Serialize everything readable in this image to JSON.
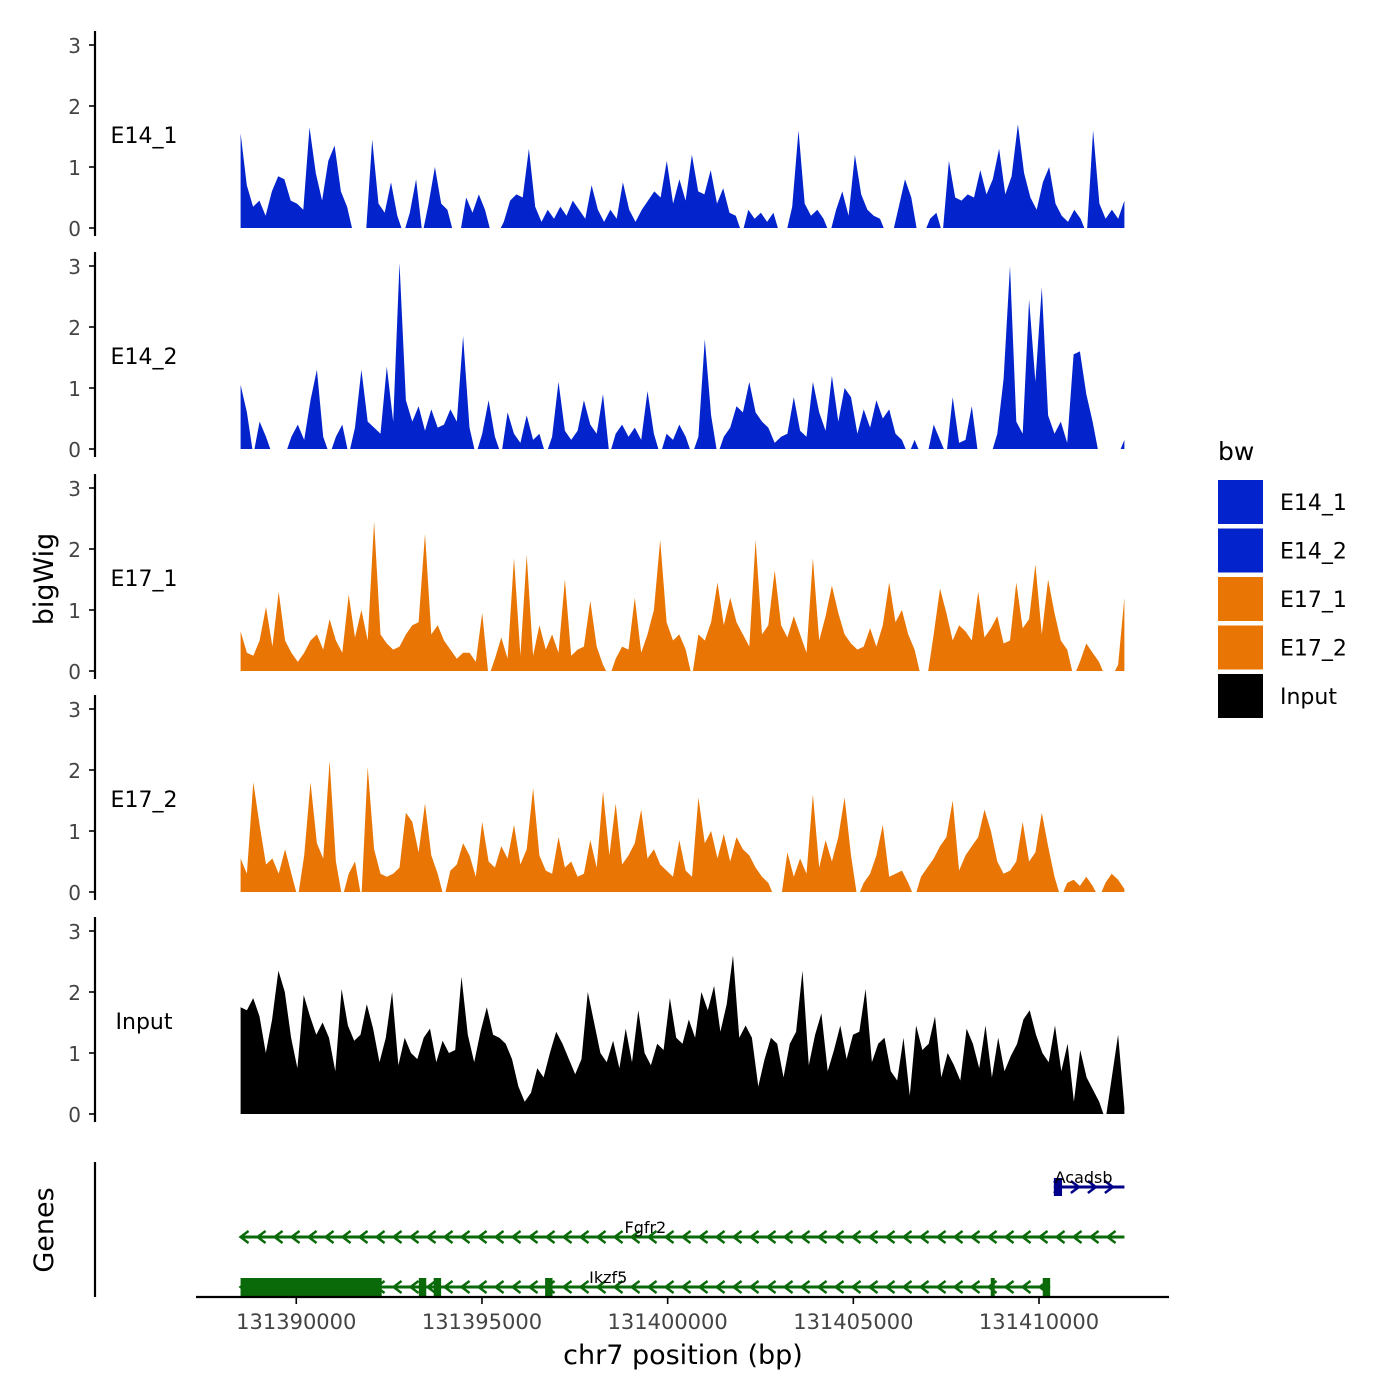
{
  "chart_data": {
    "type": "area",
    "title": "",
    "xlabel": "chr7 position (bp)",
    "ylabel": "bigWig",
    "genes_label": "Genes",
    "xlim": [
      131387300,
      131413500
    ],
    "ylim": [
      0,
      3.2
    ],
    "y_ticks": [
      "0",
      "1",
      "2",
      "3"
    ],
    "x_ticks": [
      {
        "value": 131390000,
        "label": "131390000"
      },
      {
        "value": 131395000,
        "label": "131395000"
      },
      {
        "value": 131400000,
        "label": "131400000"
      },
      {
        "value": 131405000,
        "label": "131405000"
      },
      {
        "value": 131410000,
        "label": "131410000"
      }
    ],
    "data_range": [
      131388500,
      131412300
    ],
    "legend": {
      "title": "bw",
      "items": [
        {
          "label": "E14_1",
          "color": "#0324CC"
        },
        {
          "label": "E14_2",
          "color": "#0324CC"
        },
        {
          "label": "E17_1",
          "color": "#E87504"
        },
        {
          "label": "E17_2",
          "color": "#E87504"
        },
        {
          "label": "Input",
          "color": "#000000"
        }
      ]
    },
    "series": [
      {
        "name": "E14_1",
        "color": "#0324CC",
        "values": [
          1.55,
          0.7,
          0.35,
          0.45,
          0.2,
          0.6,
          0.85,
          0.8,
          0.45,
          0.4,
          0.3,
          1.65,
          0.9,
          0.45,
          1.1,
          1.35,
          0.6,
          0.35,
          -0.1,
          -0.1,
          -0.1,
          1.45,
          0.4,
          0.25,
          0.75,
          0.2,
          -0.1,
          0.25,
          0.8,
          -0.1,
          0.4,
          1.0,
          0.4,
          0.3,
          -0.1,
          -0.1,
          0.5,
          0.25,
          0.55,
          0.3,
          -0.1,
          -0.1,
          0.1,
          0.45,
          0.55,
          0.5,
          1.3,
          0.35,
          0.1,
          0.3,
          0.15,
          0.35,
          0.2,
          0.45,
          0.3,
          0.15,
          0.7,
          0.3,
          0.1,
          0.3,
          0.15,
          0.75,
          0.3,
          0.1,
          0.3,
          0.45,
          0.6,
          0.5,
          1.1,
          0.4,
          0.8,
          0.45,
          1.2,
          0.6,
          0.55,
          0.95,
          0.4,
          0.65,
          0.25,
          0.2,
          -0.1,
          0.3,
          0.15,
          0.25,
          0.1,
          0.25,
          -0.1,
          -0.1,
          0.35,
          1.6,
          0.4,
          0.2,
          0.3,
          0.15,
          -0.1,
          0.3,
          0.6,
          0.2,
          1.2,
          0.55,
          0.3,
          0.2,
          0.15,
          -0.1,
          -0.1,
          0.35,
          0.8,
          0.5,
          -0.1,
          -0.1,
          0.15,
          0.25,
          -0.1,
          1.1,
          0.5,
          0.45,
          0.55,
          0.5,
          0.95,
          0.55,
          0.8,
          1.3,
          0.55,
          0.85,
          1.7,
          0.9,
          0.5,
          0.3,
          0.75,
          1.0,
          0.4,
          0.2,
          0.1,
          0.3,
          0.15,
          -0.1,
          1.6,
          0.4,
          0.15,
          0.3,
          0.15,
          0.45
        ]
      },
      {
        "name": "E14_2",
        "color": "#0324CC",
        "values": [
          1.05,
          0.6,
          -0.1,
          0.45,
          0.2,
          -0.1,
          -0.1,
          -0.1,
          0.2,
          0.4,
          0.15,
          0.8,
          1.3,
          0.2,
          -0.1,
          0.2,
          0.4,
          -0.1,
          0.35,
          1.3,
          0.45,
          0.35,
          0.25,
          1.35,
          0.45,
          3.05,
          0.8,
          0.45,
          0.7,
          0.3,
          0.65,
          0.35,
          0.4,
          0.65,
          0.45,
          1.85,
          0.35,
          -0.1,
          0.25,
          0.8,
          0.2,
          -0.1,
          0.6,
          0.25,
          0.1,
          0.55,
          0.15,
          0.25,
          -0.1,
          0.2,
          1.1,
          0.3,
          0.15,
          0.3,
          0.8,
          0.4,
          0.25,
          0.9,
          -0.1,
          0.25,
          0.4,
          0.2,
          0.35,
          0.15,
          0.95,
          0.25,
          -0.1,
          0.25,
          0.15,
          0.4,
          0.2,
          -0.1,
          0.2,
          1.8,
          0.55,
          -0.1,
          0.2,
          0.35,
          0.7,
          0.6,
          1.1,
          0.6,
          0.45,
          0.35,
          0.1,
          0.2,
          0.25,
          0.85,
          0.3,
          0.2,
          1.1,
          0.6,
          0.3,
          1.2,
          0.45,
          1.0,
          0.85,
          0.25,
          0.65,
          0.35,
          0.8,
          0.5,
          0.65,
          0.25,
          0.15,
          -0.1,
          0.15,
          -0.1,
          -0.1,
          0.4,
          0.15,
          -0.1,
          0.85,
          0.1,
          0.15,
          0.7,
          -0.1,
          -0.1,
          -0.1,
          0.25,
          1.15,
          3.0,
          0.45,
          0.25,
          2.45,
          1.1,
          2.65,
          0.55,
          0.25,
          0.45,
          0.1,
          1.55,
          1.6,
          0.9,
          0.45,
          -0.1,
          -0.1,
          -0.1,
          -0.1,
          0.15
        ]
      },
      {
        "name": "E17_1",
        "color": "#E87504",
        "values": [
          0.65,
          0.3,
          0.25,
          0.5,
          1.05,
          0.4,
          1.3,
          0.5,
          0.3,
          0.15,
          0.3,
          0.5,
          0.6,
          0.35,
          0.85,
          0.5,
          0.3,
          1.25,
          0.55,
          1.0,
          0.5,
          2.45,
          0.6,
          0.45,
          0.35,
          0.4,
          0.6,
          0.75,
          0.8,
          2.25,
          0.6,
          0.75,
          0.5,
          0.35,
          0.2,
          0.3,
          0.3,
          0.15,
          0.95,
          -0.1,
          0.2,
          0.55,
          0.2,
          1.85,
          0.25,
          1.9,
          0.25,
          0.75,
          0.35,
          0.6,
          0.3,
          1.5,
          0.25,
          0.35,
          0.4,
          1.15,
          0.4,
          0.1,
          -0.1,
          0.2,
          0.4,
          0.35,
          1.2,
          0.3,
          0.6,
          1.0,
          2.15,
          0.8,
          0.5,
          0.6,
          0.35,
          -0.1,
          0.6,
          0.5,
          0.8,
          1.45,
          0.75,
          1.2,
          0.8,
          0.6,
          0.4,
          2.15,
          0.6,
          0.75,
          1.65,
          0.75,
          0.55,
          0.9,
          0.6,
          0.3,
          1.85,
          0.5,
          0.9,
          1.4,
          0.95,
          0.6,
          0.45,
          0.35,
          0.4,
          0.7,
          0.4,
          0.75,
          1.45,
          0.8,
          1.0,
          0.6,
          0.35,
          -0.1,
          -0.1,
          0.6,
          1.35,
          0.95,
          0.5,
          0.75,
          0.65,
          0.5,
          1.3,
          0.55,
          0.7,
          0.9,
          0.45,
          0.5,
          1.45,
          0.7,
          0.85,
          1.75,
          0.6,
          1.5,
          0.95,
          0.5,
          0.35,
          -0.1,
          0.15,
          0.45,
          0.3,
          0.15,
          -0.1,
          -0.1,
          0.1,
          1.2
        ]
      },
      {
        "name": "E17_2",
        "color": "#E87504",
        "values": [
          0.55,
          0.3,
          1.8,
          1.1,
          0.45,
          0.55,
          0.3,
          0.7,
          0.3,
          -0.1,
          0.6,
          1.8,
          0.8,
          0.55,
          2.15,
          0.5,
          -0.1,
          0.3,
          0.5,
          -0.1,
          2.05,
          0.7,
          0.3,
          0.25,
          0.3,
          0.4,
          1.3,
          1.15,
          0.65,
          1.45,
          0.6,
          0.3,
          -0.1,
          0.35,
          0.45,
          0.8,
          0.6,
          0.25,
          1.15,
          0.5,
          0.4,
          0.75,
          0.55,
          1.1,
          0.45,
          0.7,
          1.7,
          0.6,
          0.35,
          0.3,
          0.9,
          0.4,
          0.5,
          0.25,
          0.3,
          0.85,
          0.4,
          1.65,
          0.6,
          1.45,
          0.45,
          0.6,
          0.8,
          1.35,
          0.55,
          0.7,
          0.45,
          0.35,
          0.25,
          0.85,
          0.35,
          0.25,
          1.55,
          0.8,
          1.0,
          0.55,
          0.95,
          0.5,
          0.9,
          0.7,
          0.6,
          0.4,
          0.25,
          0.15,
          -0.1,
          -0.1,
          0.65,
          0.25,
          0.55,
          0.3,
          1.6,
          0.4,
          0.85,
          0.5,
          0.9,
          1.55,
          0.6,
          -0.1,
          0.15,
          0.3,
          0.6,
          1.1,
          0.25,
          0.3,
          0.35,
          0.15,
          -0.1,
          0.25,
          0.4,
          0.55,
          0.75,
          0.9,
          1.5,
          0.35,
          0.6,
          0.75,
          0.9,
          1.35,
          1.0,
          0.5,
          0.3,
          0.35,
          0.5,
          1.15,
          0.5,
          0.65,
          1.3,
          0.75,
          0.25,
          -0.1,
          0.15,
          0.2,
          0.1,
          0.25,
          0.1,
          -0.1,
          0.15,
          0.3,
          0.2,
          0.05
        ]
      },
      {
        "name": "Input",
        "color": "#000000",
        "values": [
          1.75,
          1.7,
          1.9,
          1.6,
          1.0,
          1.55,
          2.35,
          2.0,
          1.25,
          0.75,
          1.95,
          1.6,
          1.3,
          1.5,
          1.25,
          0.7,
          2.05,
          1.45,
          1.2,
          1.3,
          1.8,
          1.4,
          0.85,
          1.25,
          2.0,
          0.8,
          1.25,
          1.0,
          0.9,
          1.25,
          1.4,
          0.85,
          1.2,
          1.0,
          1.05,
          2.25,
          1.3,
          0.85,
          1.35,
          1.75,
          1.3,
          1.25,
          1.15,
          0.9,
          0.45,
          0.2,
          0.35,
          0.75,
          0.6,
          1.0,
          1.35,
          1.15,
          0.9,
          0.65,
          0.9,
          2.0,
          1.5,
          1.0,
          0.85,
          1.2,
          0.75,
          1.4,
          0.85,
          1.7,
          1.0,
          0.8,
          1.15,
          1.05,
          1.9,
          1.25,
          1.15,
          1.55,
          1.25,
          2.0,
          1.7,
          2.1,
          1.35,
          1.8,
          2.6,
          1.25,
          1.45,
          1.25,
          0.45,
          0.9,
          1.25,
          1.15,
          0.6,
          1.15,
          1.35,
          2.35,
          0.8,
          1.3,
          1.65,
          0.7,
          1.05,
          1.45,
          0.9,
          1.3,
          1.35,
          2.05,
          0.85,
          1.15,
          1.25,
          0.7,
          0.55,
          1.25,
          0.3,
          1.45,
          1.05,
          1.15,
          1.6,
          0.6,
          1.0,
          0.8,
          0.55,
          1.4,
          1.15,
          0.75,
          1.45,
          0.6,
          1.25,
          0.7,
          0.95,
          1.15,
          1.55,
          1.7,
          1.3,
          1.0,
          0.85,
          1.45,
          0.7,
          1.15,
          0.2,
          1.05,
          0.6,
          0.4,
          0.2,
          -0.1,
          0.6,
          1.3,
          0.1
        ]
      }
    ],
    "genes": [
      {
        "name": "Acadsb",
        "color": "#000088",
        "start": 131410400,
        "end": 131412300,
        "strand": "+",
        "label_pos": 131411200,
        "exons": [
          [
            131410400,
            131410450
          ],
          [
            131410480,
            131410620
          ]
        ]
      },
      {
        "name": "Fgfr2",
        "color": "#0A6A0A",
        "start": 131388500,
        "end": 131412300,
        "strand": "-",
        "label_pos": 131399400,
        "exons": []
      },
      {
        "name": "Ikzf5",
        "color": "#0A6A0A",
        "start": 131388500,
        "end": 131410300,
        "strand": "-",
        "label_pos": 131398400,
        "exons": [
          [
            131388500,
            131392300
          ],
          [
            131393300,
            131393500
          ],
          [
            131393700,
            131393900
          ],
          [
            131396700,
            131396900
          ],
          [
            131408700,
            131408800
          ],
          [
            131410100,
            131410300
          ]
        ]
      }
    ]
  }
}
